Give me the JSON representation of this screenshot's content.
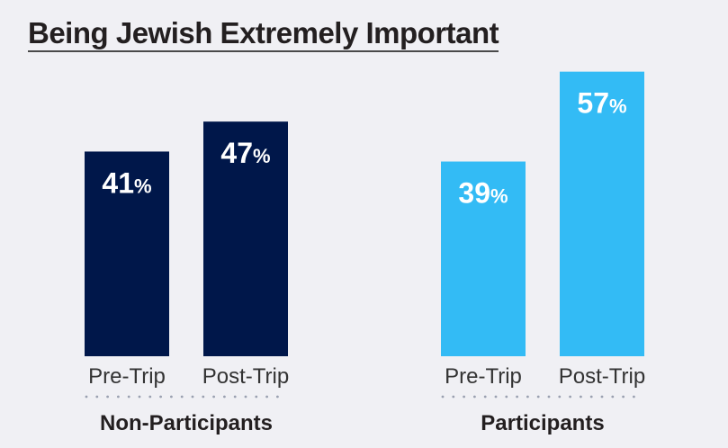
{
  "chart_data": {
    "type": "bar",
    "title": "Being Jewish Extremely Important",
    "groups": [
      {
        "name": "Non-Participants",
        "color": "#00174a",
        "categories": [
          "Pre-Trip",
          "Post-Trip"
        ],
        "values": [
          41,
          47
        ]
      },
      {
        "name": "Participants",
        "color": "#33bbf5",
        "categories": [
          "Pre-Trip",
          "Post-Trip"
        ],
        "values": [
          39,
          57
        ]
      }
    ],
    "value_suffix": "%",
    "ylim": [
      0,
      100
    ],
    "grid": false,
    "legend": "none"
  }
}
